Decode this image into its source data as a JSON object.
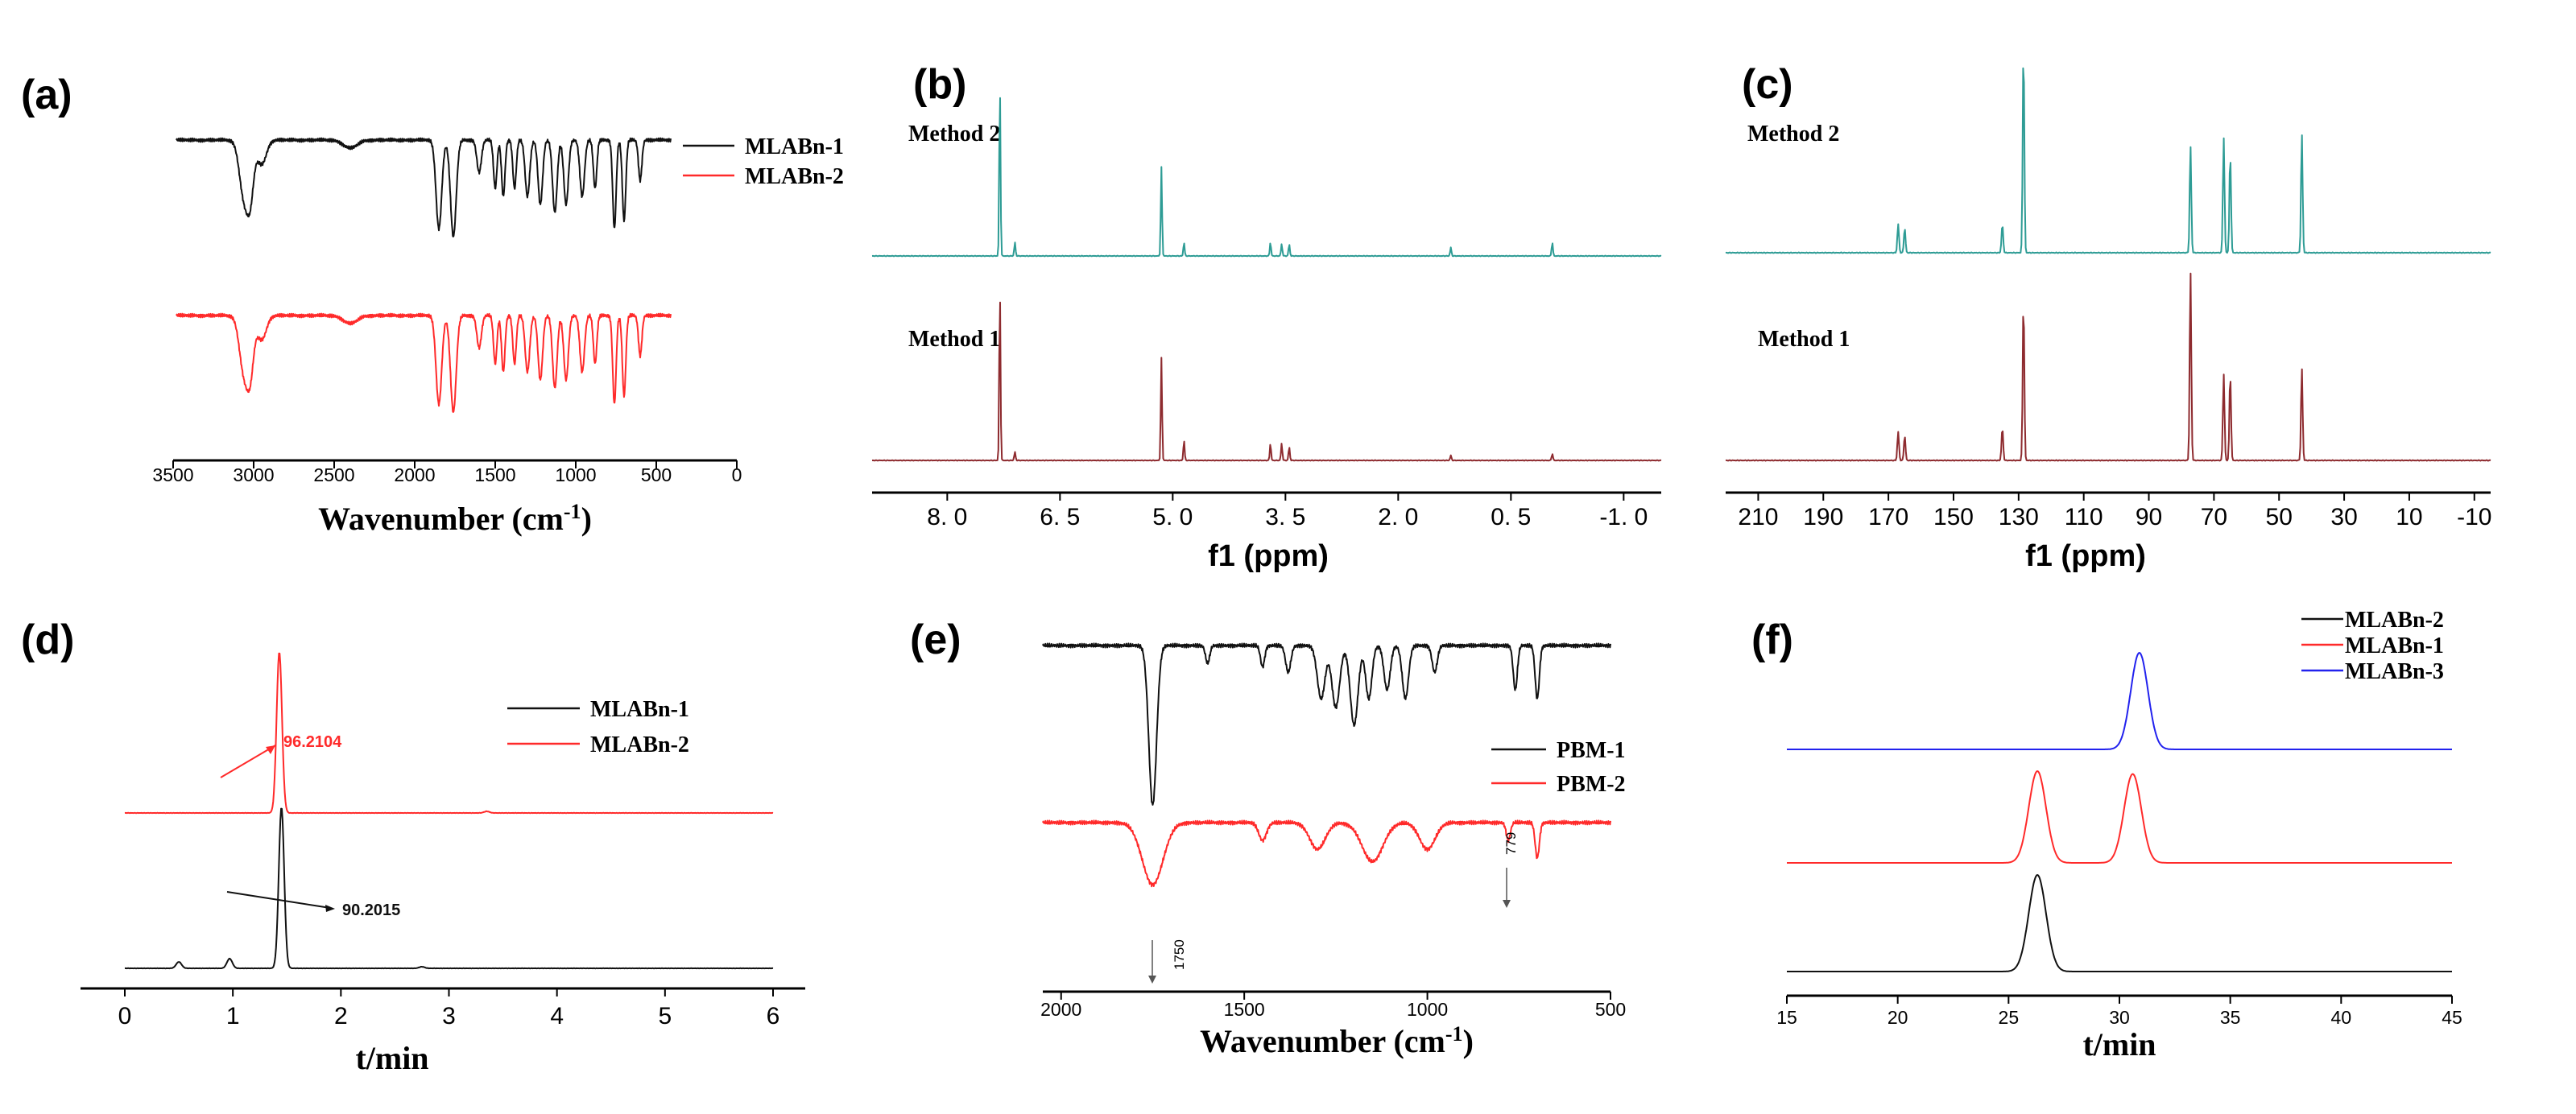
{
  "colors": {
    "black": "#111111",
    "red": "#ff2a2a",
    "teal": "#2e9c95",
    "maroon": "#8e2b2f",
    "blue": "#2222ee"
  },
  "chart_data": [
    {
      "id": "a",
      "letter": "(a)",
      "type": "line",
      "title": "",
      "xlabel_main": "Wavenumber (cm",
      "xlabel_sup": "-1",
      "xlabel_close": ")",
      "ylabel": "",
      "xlim": [
        3500,
        0
      ],
      "xticks": [
        3500,
        3000,
        2500,
        2000,
        1500,
        1000,
        500,
        0
      ],
      "series": [
        {
          "name": "MLABn-1",
          "color": "#111111",
          "offset": 0.62,
          "x_range": [
            3480,
            410
          ],
          "baseline": 0.88,
          "dips": [
            [
              3060,
              0.35,
              40
            ],
            [
              3020,
              0.3,
              30
            ],
            [
              2950,
              0.15,
              40
            ],
            [
              2400,
              0.05,
              60
            ],
            [
              1850,
              0.55,
              25
            ],
            [
              1760,
              0.6,
              25
            ],
            [
              1600,
              0.2,
              20
            ],
            [
              1500,
              0.3,
              15
            ],
            [
              1450,
              0.35,
              15
            ],
            [
              1380,
              0.3,
              15
            ],
            [
              1300,
              0.35,
              20
            ],
            [
              1220,
              0.4,
              20
            ],
            [
              1130,
              0.45,
              20
            ],
            [
              1060,
              0.4,
              20
            ],
            [
              960,
              0.35,
              20
            ],
            [
              880,
              0.3,
              15
            ],
            [
              760,
              0.55,
              15
            ],
            [
              700,
              0.5,
              15
            ],
            [
              600,
              0.25,
              15
            ]
          ]
        },
        {
          "name": "MLABn-2",
          "color": "#ff2a2a",
          "offset": 0.12,
          "x_range": [
            3480,
            410
          ],
          "baseline": 0.86,
          "dips": [
            [
              3060,
              0.35,
              40
            ],
            [
              3020,
              0.3,
              30
            ],
            [
              2950,
              0.15,
              40
            ],
            [
              2400,
              0.05,
              60
            ],
            [
              1850,
              0.55,
              25
            ],
            [
              1760,
              0.6,
              25
            ],
            [
              1600,
              0.2,
              20
            ],
            [
              1500,
              0.3,
              15
            ],
            [
              1450,
              0.35,
              15
            ],
            [
              1380,
              0.3,
              15
            ],
            [
              1300,
              0.35,
              20
            ],
            [
              1220,
              0.4,
              20
            ],
            [
              1130,
              0.45,
              20
            ],
            [
              1060,
              0.4,
              20
            ],
            [
              960,
              0.35,
              20
            ],
            [
              880,
              0.3,
              15
            ],
            [
              760,
              0.55,
              15
            ],
            [
              700,
              0.5,
              15
            ],
            [
              600,
              0.25,
              15
            ]
          ]
        }
      ],
      "legend": [
        "MLABn-1",
        "MLABn-2"
      ]
    },
    {
      "id": "b",
      "letter": "(b)",
      "type": "line",
      "xlabel": "f1 (ppm)",
      "xlim": [
        9.0,
        -1.5
      ],
      "xticks": [
        8.0,
        6.5,
        5.0,
        3.5,
        2.0,
        0.5,
        -1.0
      ],
      "xtick_labels": [
        "8. 0",
        "6. 5",
        "5. 0",
        "3. 5",
        "2. 0",
        "0. 5",
        "-1. 0"
      ],
      "series": [
        {
          "name": "Method 2",
          "color": "#2e9c95",
          "offset": 0.6,
          "peaks": [
            [
              7.3,
              1.0
            ],
            [
              7.1,
              0.08
            ],
            [
              5.15,
              0.52
            ],
            [
              4.85,
              0.08
            ],
            [
              3.7,
              0.08
            ],
            [
              3.55,
              0.07
            ],
            [
              3.45,
              0.07
            ],
            [
              1.3,
              0.05
            ],
            [
              -0.05,
              0.08
            ]
          ]
        },
        {
          "name": "Method 1",
          "color": "#8e2b2f",
          "offset": 0.0,
          "peaks": [
            [
              7.3,
              1.0
            ],
            [
              7.1,
              0.05
            ],
            [
              5.15,
              0.6
            ],
            [
              4.85,
              0.12
            ],
            [
              3.7,
              0.1
            ],
            [
              3.55,
              0.1
            ],
            [
              3.45,
              0.08
            ],
            [
              1.3,
              0.03
            ],
            [
              -0.05,
              0.04
            ]
          ]
        }
      ]
    },
    {
      "id": "c",
      "letter": "(c)",
      "type": "line",
      "xlabel": "f1 (ppm)",
      "xlim": [
        220,
        -15
      ],
      "xticks": [
        210,
        190,
        170,
        150,
        130,
        110,
        90,
        70,
        50,
        30,
        10,
        -10
      ],
      "series": [
        {
          "name": "Method 2",
          "color": "#2e9c95",
          "offset": 0.6,
          "peaks": [
            [
              167,
              0.14
            ],
            [
              165,
              0.12
            ],
            [
              135,
              0.14
            ],
            [
              128.5,
              1.0
            ],
            [
              77.2,
              0.52
            ],
            [
              67,
              0.56
            ],
            [
              65,
              0.48
            ],
            [
              43,
              0.58
            ]
          ]
        },
        {
          "name": "Method 1",
          "color": "#8e2b2f",
          "offset": 0.0,
          "peaks": [
            [
              167,
              0.14
            ],
            [
              165,
              0.12
            ],
            [
              135,
              0.16
            ],
            [
              128.5,
              0.78
            ],
            [
              77.2,
              0.92
            ],
            [
              67,
              0.42
            ],
            [
              65,
              0.42
            ],
            [
              43,
              0.45
            ]
          ]
        }
      ]
    },
    {
      "id": "d",
      "letter": "(d)",
      "type": "line",
      "xlabel": "t/min",
      "xlim": [
        0,
        6
      ],
      "xticks": [
        0,
        1,
        2,
        3,
        4,
        5,
        6
      ],
      "series": [
        {
          "name": "MLABn-1",
          "color": "#111111",
          "offset": 0.0,
          "peaks": [
            [
              0.5,
              0.04
            ],
            [
              0.97,
              0.06
            ],
            [
              1.45,
              1.0
            ],
            [
              2.75,
              0.01
            ]
          ]
        },
        {
          "name": "MLABn-2",
          "color": "#ff2a2a",
          "offset": 0.52,
          "peaks": [
            [
              1.43,
              1.0
            ],
            [
              3.35,
              0.01
            ]
          ]
        }
      ],
      "annotations": [
        {
          "text": "96.2104",
          "color": "#ff2a2a",
          "series": 1
        },
        {
          "text": "90.2015",
          "color": "#111111",
          "series": 0
        }
      ],
      "legend": [
        "MLABn-1",
        "MLABn-2"
      ]
    },
    {
      "id": "e",
      "letter": "(e)",
      "type": "line",
      "xlabel_main": "Wavenumber (cm",
      "xlabel_sup": "-1",
      "xlabel_close": ")",
      "xlim": [
        2050,
        500
      ],
      "xticks": [
        2000,
        1500,
        1000,
        500
      ],
      "series": [
        {
          "name": "PBM-1",
          "color": "#111111",
          "offset": 0.55,
          "dips": [
            [
              1750,
              0.9,
              15
            ],
            [
              1600,
              0.1,
              8
            ],
            [
              1450,
              0.12,
              8
            ],
            [
              1380,
              0.15,
              10
            ],
            [
              1290,
              0.3,
              15
            ],
            [
              1250,
              0.35,
              15
            ],
            [
              1200,
              0.45,
              15
            ],
            [
              1160,
              0.3,
              12
            ],
            [
              1110,
              0.25,
              12
            ],
            [
              1060,
              0.3,
              12
            ],
            [
              980,
              0.15,
              10
            ],
            [
              760,
              0.25,
              8
            ],
            [
              700,
              0.3,
              8
            ]
          ]
        },
        {
          "name": "PBM-2",
          "color": "#ff2a2a",
          "offset": 0.0,
          "dips": [
            [
              1750,
              0.35,
              40
            ],
            [
              1450,
              0.1,
              15
            ],
            [
              1300,
              0.15,
              30
            ],
            [
              1150,
              0.22,
              40
            ],
            [
              1000,
              0.15,
              30
            ],
            [
              779,
              0.1,
              8
            ],
            [
              700,
              0.2,
              8
            ]
          ]
        }
      ],
      "annotations": [
        "1750",
        "779"
      ],
      "legend": [
        "PBM-1",
        "PBM-2"
      ]
    },
    {
      "id": "f",
      "letter": "(f)",
      "type": "line",
      "xlabel": "t/min",
      "xlim": [
        15,
        45
      ],
      "xticks": [
        15,
        20,
        25,
        30,
        35,
        40,
        45
      ],
      "series": [
        {
          "name": "MLABn-2",
          "color": "#111111",
          "offset": 0.68,
          "peaks": [
            [
              26.3,
              1.0
            ]
          ]
        },
        {
          "name": "MLABn-1",
          "color": "#ff2a2a",
          "offset": 0.34,
          "peaks": [
            [
              26.3,
              0.95
            ],
            [
              30.6,
              0.92
            ]
          ]
        },
        {
          "name": "MLABn-3",
          "color": "#2222ee",
          "offset": 0.0,
          "peaks": [
            [
              30.9,
              1.0
            ]
          ]
        }
      ],
      "legend": [
        "MLABn-2",
        "MLABn-1",
        "MLABn-3"
      ]
    }
  ]
}
